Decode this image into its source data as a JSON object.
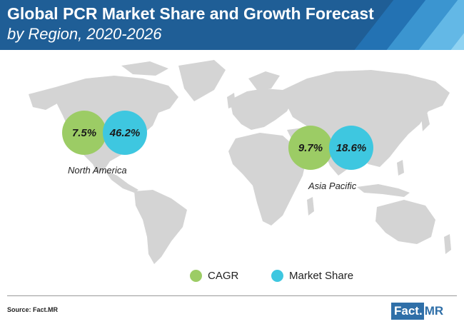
{
  "header": {
    "title": "Global PCR Market Share and Growth Forecast",
    "subtitle": "by Region, 2020-2026"
  },
  "regions": [
    {
      "name": "North America",
      "cagr": "7.5%",
      "share": "46.2%"
    },
    {
      "name": "Asia Pacific",
      "cagr": "9.7%",
      "share": "18.6%"
    }
  ],
  "legend": {
    "cagr_label": "CAGR",
    "share_label": "Market Share"
  },
  "colors": {
    "banner": "#1f5e96",
    "cagr": "#9ccc65",
    "share": "#3ec7e0",
    "land": "#d4d4d4"
  },
  "footer": {
    "source": "Source: Fact.MR",
    "logo_main": "Fact.",
    "logo_tail": "MR"
  }
}
